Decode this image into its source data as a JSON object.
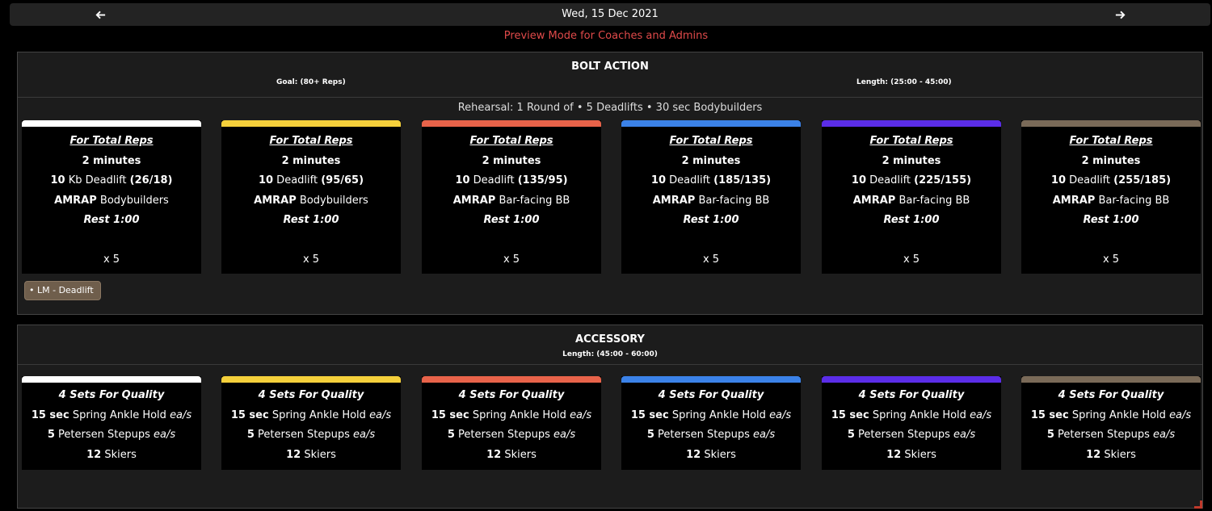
{
  "nav": {
    "prev_icon": "arrow-left-icon",
    "next_icon": "arrow-right-icon",
    "date": "Wed, 15 Dec 2021"
  },
  "preview_text": "Preview Mode for Coaches and Admins",
  "colors": {
    "preview": "#e04a4a",
    "tracks": [
      "#ffffff",
      "#f5d03b",
      "#e8634a",
      "#3b82e8",
      "#5b2de8",
      "#7a6a58"
    ]
  },
  "bolt": {
    "title": "BOLT ACTION",
    "goal": "Goal: (80+ Reps)",
    "length": "Length: (25:00 - 45:00)",
    "rehearsal": "Rehearsal: 1 Round of • 5 Deadlifts • 30 sec Bodybuilders",
    "tag": "• LM - Deadlift",
    "cards": [
      {
        "heading": "For Total Reps",
        "duration": "2 minutes",
        "dl_count": "10",
        "dl_name": " Kb Deadlift ",
        "dl_weight": "(26/18)",
        "amrap": "AMRAP",
        "amrap_move": " Bodybuilders",
        "rest": "Rest 1:00",
        "times": "x 5"
      },
      {
        "heading": "For Total Reps",
        "duration": "2 minutes",
        "dl_count": "10",
        "dl_name": " Deadlift ",
        "dl_weight": "(95/65)",
        "amrap": "AMRAP",
        "amrap_move": " Bodybuilders",
        "rest": "Rest 1:00",
        "times": "x 5"
      },
      {
        "heading": "For Total Reps",
        "duration": "2 minutes",
        "dl_count": "10",
        "dl_name": " Deadlift ",
        "dl_weight": "(135/95)",
        "amrap": "AMRAP",
        "amrap_move": " Bar-facing BB",
        "rest": "Rest 1:00",
        "times": "x 5"
      },
      {
        "heading": "For Total Reps",
        "duration": "2 minutes",
        "dl_count": "10",
        "dl_name": " Deadlift ",
        "dl_weight": "(185/135)",
        "amrap": "AMRAP",
        "amrap_move": " Bar-facing BB",
        "rest": "Rest 1:00",
        "times": "x 5"
      },
      {
        "heading": "For Total Reps",
        "duration": "2 minutes",
        "dl_count": "10",
        "dl_name": " Deadlift ",
        "dl_weight": "(225/155)",
        "amrap": "AMRAP",
        "amrap_move": " Bar-facing BB",
        "rest": "Rest 1:00",
        "times": "x 5"
      },
      {
        "heading": "For Total Reps",
        "duration": "2 minutes",
        "dl_count": "10",
        "dl_name": " Deadlift ",
        "dl_weight": "(255/185)",
        "amrap": "AMRAP",
        "amrap_move": " Bar-facing BB",
        "rest": "Rest 1:00",
        "times": "x 5"
      }
    ]
  },
  "accessory": {
    "title": "ACCESSORY",
    "length": "Length: (45:00 - 60:00)",
    "card": {
      "heading": "4 Sets For Quality",
      "l1_num": "15 sec",
      "l1_name": " Spring Ankle Hold ",
      "l1_suffix": "ea/s",
      "l2_num": "5",
      "l2_name": " Petersen Stepups ",
      "l2_suffix": "ea/s",
      "l3_num": "12",
      "l3_name": " Skiers"
    },
    "card_count": 6
  }
}
